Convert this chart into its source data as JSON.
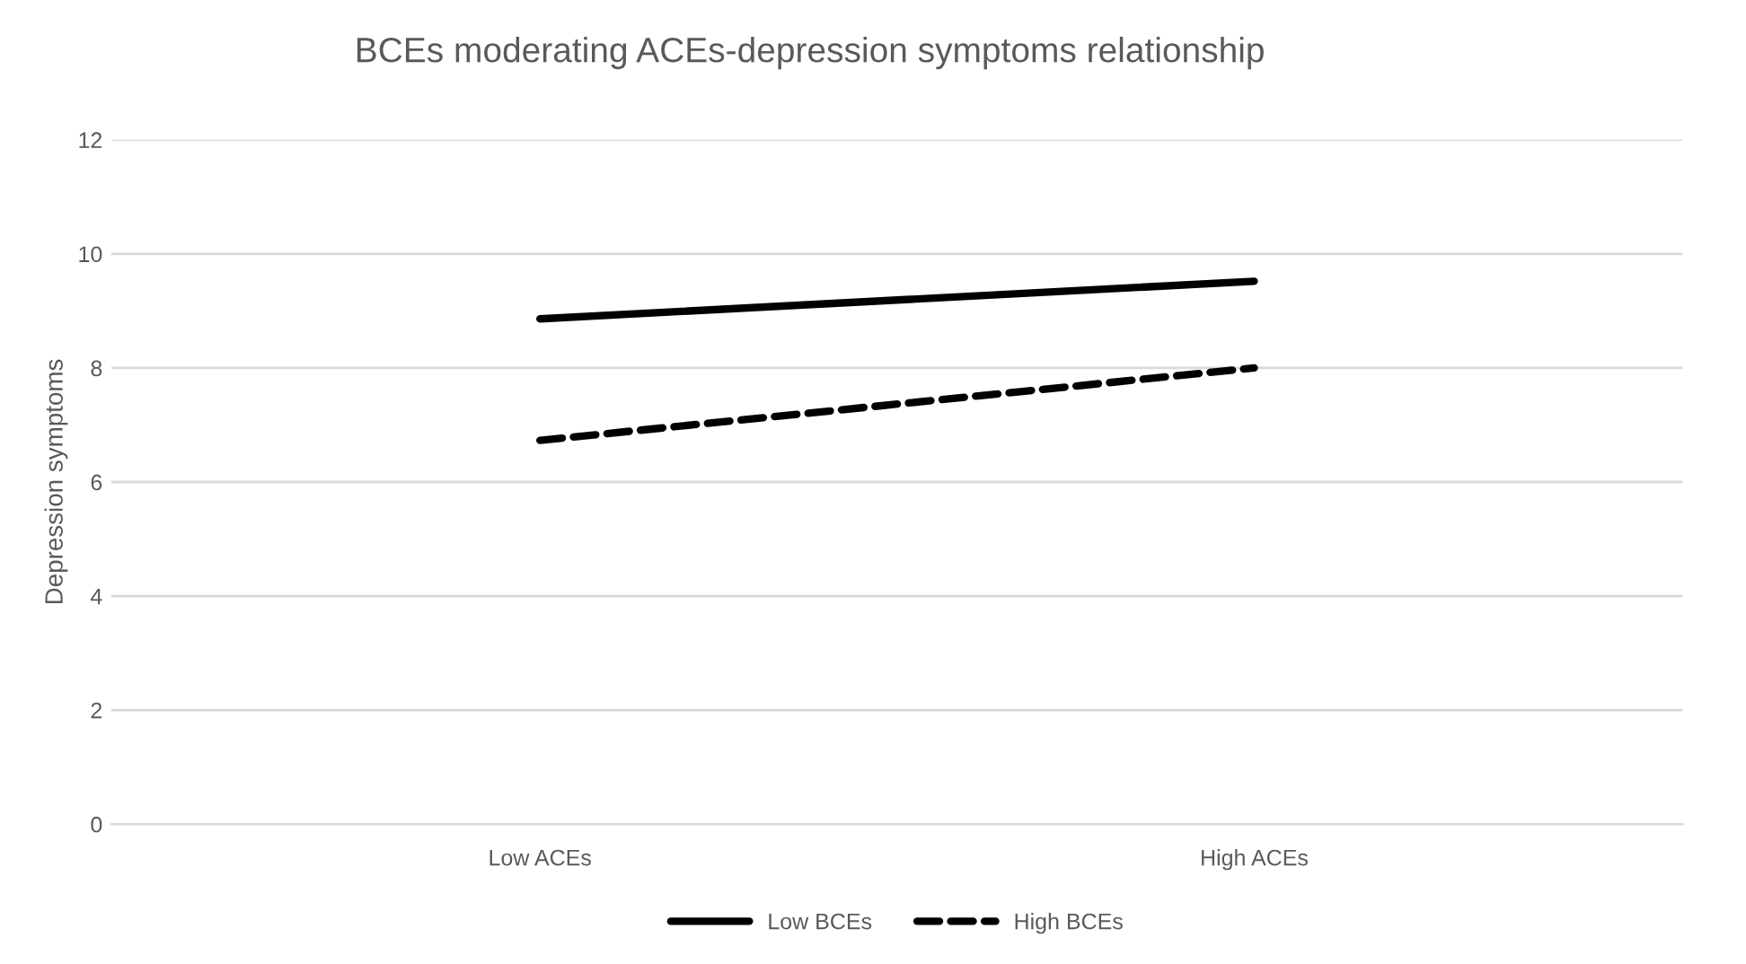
{
  "chart_data": {
    "type": "line",
    "title": "BCEs moderating ACEs-depression symptoms relationship",
    "ylabel": "Depression symptoms",
    "categories": [
      "Low ACEs",
      "High ACEs"
    ],
    "series": [
      {
        "name": "Low BCEs",
        "color": "#000000",
        "line_style": "solid",
        "values": [
          8.86,
          9.52
        ]
      },
      {
        "name": "High BCEs",
        "color": "#000000",
        "line_style": "dashed",
        "values": [
          6.73,
          8.0
        ]
      }
    ],
    "ylim": [
      0,
      12
    ],
    "yticks": [
      0,
      2,
      4,
      6,
      8,
      10,
      12
    ],
    "grid": "y",
    "legend": "bottom",
    "marker": "none"
  }
}
